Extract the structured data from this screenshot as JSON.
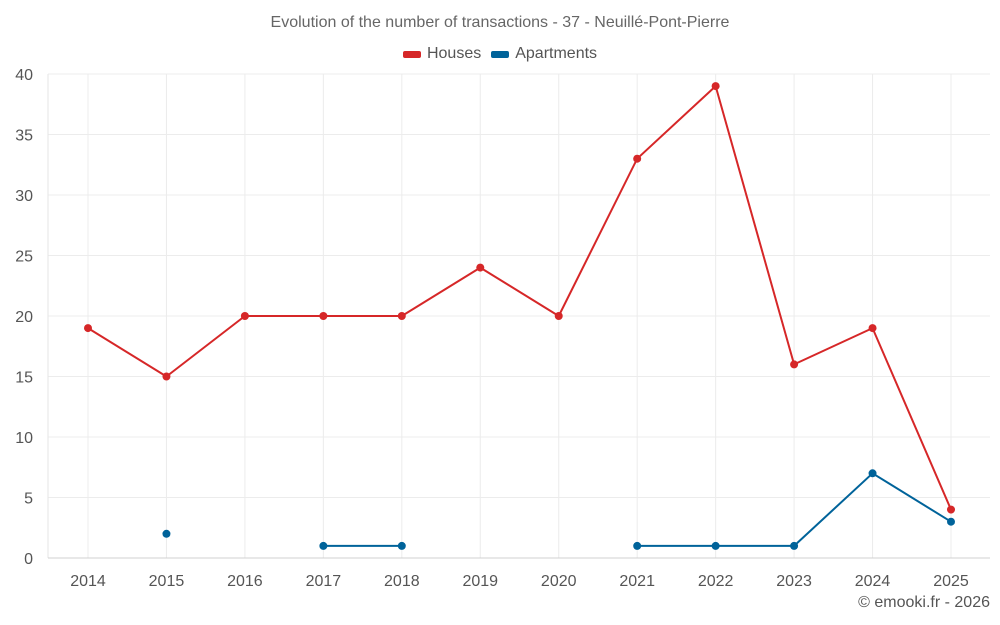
{
  "chart_data": {
    "type": "line",
    "title": "Evolution of the number of transactions - 37 - Neuillé-Pont-Pierre",
    "x": [
      "2014",
      "2015",
      "2016",
      "2017",
      "2018",
      "2019",
      "2020",
      "2021",
      "2022",
      "2023",
      "2024",
      "2025"
    ],
    "ylim": [
      0,
      40
    ],
    "yticks": [
      0,
      5,
      10,
      15,
      20,
      25,
      30,
      35,
      40
    ],
    "grid": true,
    "legend_position": "top-center",
    "series": [
      {
        "name": "Houses",
        "color": "#d62728",
        "values": [
          19,
          15,
          20,
          20,
          20,
          24,
          20,
          33,
          39,
          16,
          19,
          4
        ]
      },
      {
        "name": "Apartments",
        "color": "#00639a",
        "values": [
          null,
          2,
          null,
          1,
          1,
          null,
          null,
          1,
          1,
          1,
          7,
          3
        ]
      }
    ]
  },
  "credit": "© emooki.fr - 2026"
}
